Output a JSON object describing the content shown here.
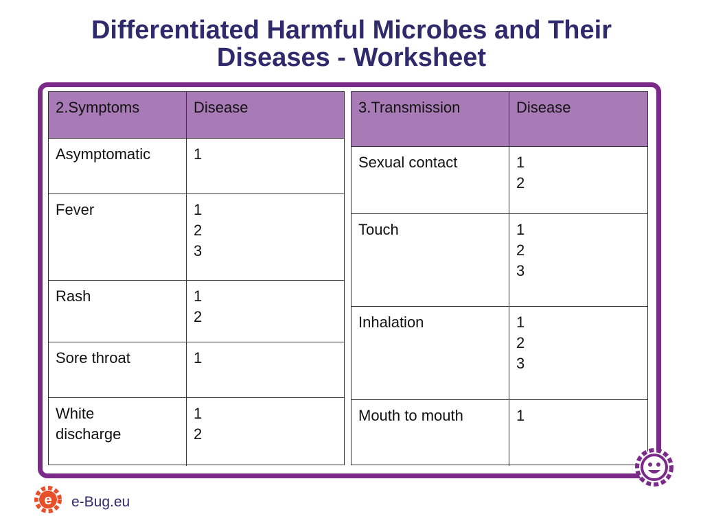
{
  "title_lines": [
    "Differentiated Harmful Microbes and Their",
    "Diseases - Worksheet"
  ],
  "tables": [
    {
      "header": [
        "2.Symptoms",
        "Disease"
      ],
      "rows": [
        {
          "item": [
            "Asymptomatic"
          ],
          "diseases": [
            1
          ]
        },
        {
          "item": [
            "Fever"
          ],
          "diseases": [
            1,
            2,
            3
          ]
        },
        {
          "item": [
            "Rash"
          ],
          "diseases": [
            1,
            2
          ]
        },
        {
          "item": [
            "Sore throat"
          ],
          "diseases": [
            1
          ]
        },
        {
          "item": [
            "White",
            "discharge"
          ],
          "diseases": [
            1,
            2
          ]
        }
      ]
    },
    {
      "header": [
        "3.Transmission",
        "Disease"
      ],
      "rows": [
        {
          "item": [
            "Sexual contact"
          ],
          "diseases": [
            1,
            2
          ]
        },
        {
          "item": [
            "Touch"
          ],
          "diseases": [
            1,
            2,
            3
          ]
        },
        {
          "item": [
            "Inhalation"
          ],
          "diseases": [
            1,
            2,
            3
          ]
        },
        {
          "item": [
            "Mouth to mouth"
          ],
          "diseases": [
            1
          ]
        }
      ]
    }
  ],
  "footer": {
    "logo_text": "e-Bug.eu"
  }
}
